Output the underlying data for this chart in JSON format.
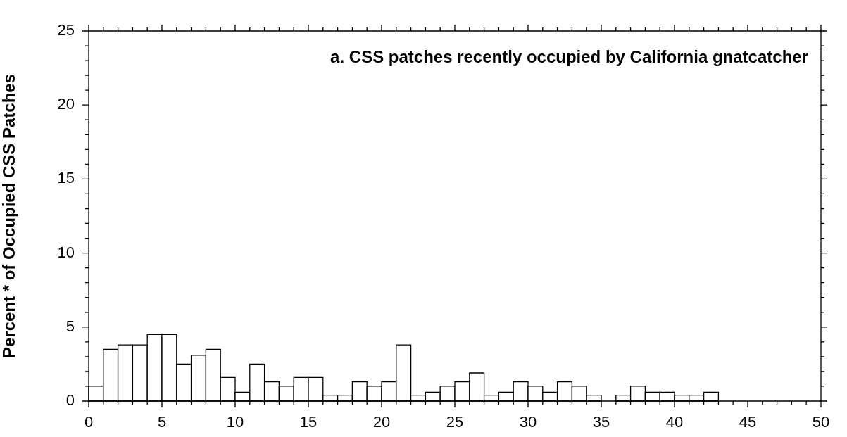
{
  "chart_data": {
    "type": "histogram",
    "title": "a. CSS patches recently occupied by California gnatcatcher",
    "ylabel": "Percent * of Occupied CSS Patches",
    "bins": [
      0,
      1,
      2,
      3,
      4,
      5,
      6,
      7,
      8,
      9,
      10,
      11,
      12,
      13,
      14,
      15,
      16,
      17,
      18,
      19,
      20,
      21,
      22,
      23,
      24,
      25,
      26,
      27,
      28,
      29,
      30,
      31,
      32,
      33,
      34,
      35,
      36,
      37,
      38,
      39,
      40,
      41,
      42,
      43,
      44,
      45,
      46,
      47,
      48,
      49,
      50
    ],
    "values": [
      1.0,
      3.5,
      3.8,
      3.8,
      4.5,
      4.5,
      2.5,
      3.1,
      3.5,
      1.6,
      0.6,
      2.5,
      1.3,
      1.0,
      1.6,
      1.6,
      0.4,
      0.4,
      1.3,
      1.0,
      1.3,
      3.8,
      0.4,
      0.6,
      1.0,
      1.3,
      1.9,
      0.4,
      0.6,
      1.3,
      1.0,
      0.6,
      1.3,
      1.0,
      0.4,
      0,
      0.4,
      1.0,
      0.6,
      0.6,
      0.4,
      0.4,
      0.6,
      0,
      0,
      0,
      0,
      0,
      0,
      0
    ],
    "color": "#000000",
    "xlim": [
      0,
      50
    ],
    "xticks": [
      0,
      {
        "value": 1,
        "label": null
      },
      {
        "value": 2,
        "label": null
      },
      {
        "value": 3,
        "label": null
      },
      {
        "value": 4,
        "label": null
      },
      5,
      {
        "value": 6,
        "label": null
      },
      {
        "value": 7,
        "label": null
      },
      {
        "value": 8,
        "label": null
      },
      {
        "value": 9,
        "label": null
      },
      10,
      {
        "value": 11,
        "label": null
      },
      {
        "value": 12,
        "label": null
      },
      {
        "value": 13,
        "label": null
      },
      {
        "value": 14,
        "label": null
      },
      15,
      {
        "value": 16,
        "label": null
      },
      {
        "value": 17,
        "label": null
      },
      {
        "value": 18,
        "label": null
      },
      {
        "value": 19,
        "label": null
      },
      20,
      {
        "value": 21,
        "label": null
      },
      {
        "value": 22,
        "label": null
      },
      {
        "value": 23,
        "label": null
      },
      {
        "value": 24,
        "label": null
      },
      25,
      {
        "value": 26,
        "label": null
      },
      {
        "value": 27,
        "label": null
      },
      {
        "value": 28,
        "label": null
      },
      {
        "value": 29,
        "label": null
      },
      30,
      {
        "value": 31,
        "label": null
      },
      {
        "value": 32,
        "label": null
      },
      {
        "value": 33,
        "label": null
      },
      {
        "value": 34,
        "label": null
      },
      35,
      {
        "value": 36,
        "label": null
      },
      {
        "value": 37,
        "label": null
      },
      {
        "value": 38,
        "label": null
      },
      {
        "value": 39,
        "label": null
      },
      40,
      {
        "value": 41,
        "label": null
      },
      {
        "value": 42,
        "label": null
      },
      {
        "value": 43,
        "label": null
      },
      {
        "value": 44,
        "label": null
      },
      45,
      {
        "value": 46,
        "label": null
      },
      {
        "value": 47,
        "label": null
      },
      {
        "value": 48,
        "label": null
      },
      {
        "value": 49,
        "label": null
      },
      50
    ],
    "ylim": [
      0,
      25
    ],
    "yticks": [
      0,
      {
        "value": 1,
        "label": null
      },
      {
        "value": 2,
        "label": null
      },
      {
        "value": 3,
        "label": null
      },
      {
        "value": 4,
        "label": null
      },
      5,
      {
        "value": 6,
        "label": null
      },
      {
        "value": 7,
        "label": null
      },
      {
        "value": 8,
        "label": null
      },
      {
        "value": 9,
        "label": null
      },
      10,
      {
        "value": 11,
        "label": null
      },
      {
        "value": 12,
        "label": null
      },
      {
        "value": 13,
        "label": null
      },
      {
        "value": 14,
        "label": null
      },
      15,
      {
        "value": 16,
        "label": null
      },
      {
        "value": 17,
        "label": null
      },
      {
        "value": 18,
        "label": null
      },
      {
        "value": 19,
        "label": null
      },
      20,
      {
        "value": 21,
        "label": null
      },
      {
        "value": 22,
        "label": null
      },
      {
        "value": 23,
        "label": null
      },
      {
        "value": 24,
        "label": null
      },
      25
    ]
  }
}
